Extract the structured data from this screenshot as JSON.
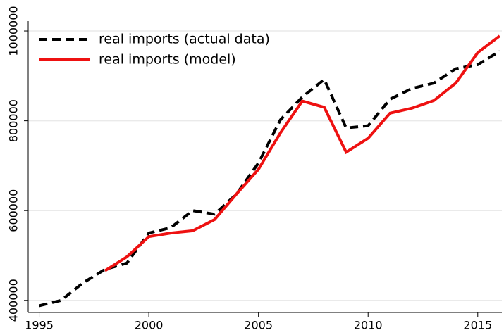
{
  "chart_data": {
    "type": "line",
    "x": [
      1995,
      1996,
      1997,
      1998,
      1999,
      2000,
      2001,
      2002,
      2003,
      2004,
      2005,
      2006,
      2007,
      2008,
      2009,
      2010,
      2011,
      2012,
      2013,
      2014,
      2015,
      2016
    ],
    "series": [
      {
        "name": "real imports (actual data)",
        "color": "#000000",
        "dash": true,
        "values": [
          388000,
          400000,
          439000,
          469000,
          483000,
          550000,
          562000,
          600000,
          592000,
          637000,
          706000,
          802000,
          853000,
          892000,
          784000,
          789000,
          848000,
          872000,
          884000,
          916000,
          925000,
          955000
        ]
      },
      {
        "name": "real imports (model)",
        "color": "#ee1111",
        "dash": false,
        "values": [
          null,
          null,
          null,
          466000,
          497000,
          542000,
          550000,
          555000,
          580000,
          637000,
          692000,
          773000,
          844000,
          830000,
          730000,
          761000,
          817000,
          828000,
          845000,
          884000,
          952000,
          989000
        ]
      }
    ],
    "xlim": [
      1994.5,
      2016.1
    ],
    "xticks": [
      1995,
      2000,
      2005,
      2010,
      2015
    ],
    "ylim": [
      373000,
      1022000
    ],
    "yticks": [
      400000,
      600000,
      800000,
      1000000
    ],
    "grid": true,
    "legend": "top-left"
  }
}
